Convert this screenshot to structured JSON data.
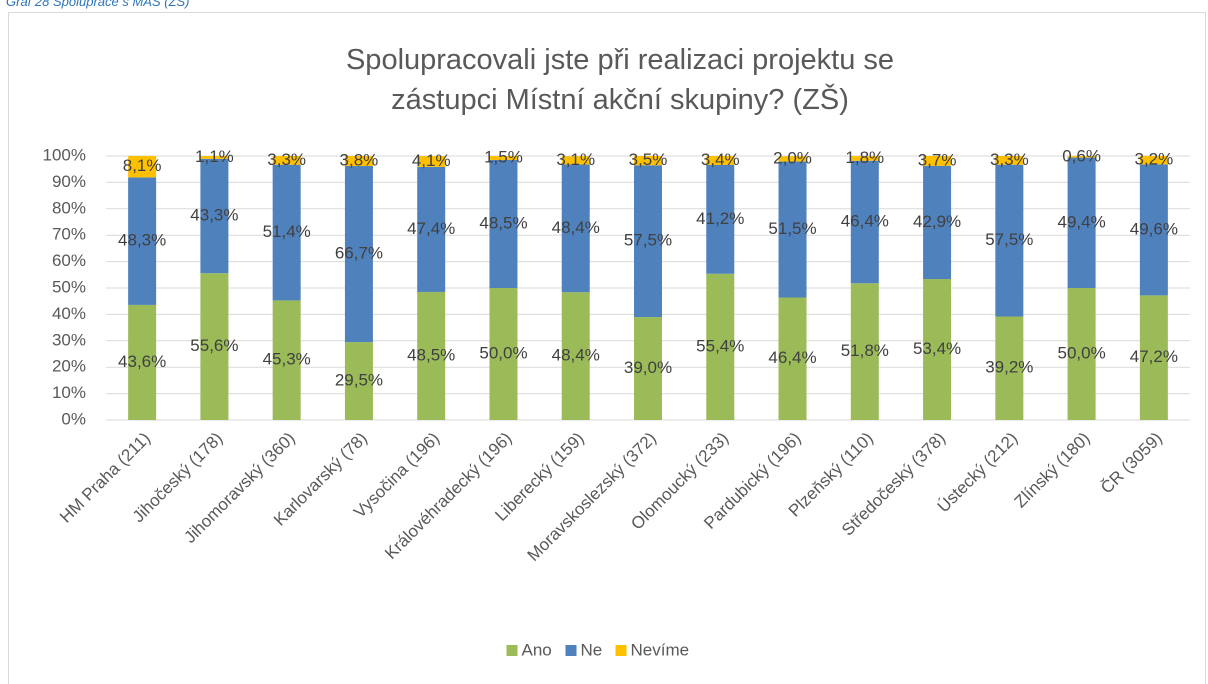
{
  "caption": "Graf 28 Spolupráce s MAS (ZŠ)",
  "chart_data": {
    "type": "stacked_bar",
    "title": "Spolupracovali jste při realizaci projektu se zástupci Místní akční skupiny? (ZŠ)",
    "categories": [
      "HM Praha (211)",
      "Jihočeský (178)",
      "Jihomoravský (360)",
      "Karlovarský (78)",
      "Vysočina (196)",
      "Královéhradecký (196)",
      "Liberecký (159)",
      "Moravskoslezský (372)",
      "Olomoucký (233)",
      "Pardubický (196)",
      "Plzeňský (110)",
      "Středočeský (378)",
      "Ústecký (212)",
      "Zlínský (180)",
      "ČR (3059)"
    ],
    "series": [
      {
        "name": "Ano",
        "color": "#9bbb59",
        "values": [
          43.6,
          55.6,
          45.3,
          29.5,
          48.5,
          50.0,
          48.4,
          39.0,
          55.4,
          46.4,
          51.8,
          53.4,
          39.2,
          50.0,
          47.2
        ],
        "value_labels": [
          "43,6%",
          "55,6%",
          "45,3%",
          "29,5%",
          "48,5%",
          "50,0%",
          "48,4%",
          "39,0%",
          "55,4%",
          "46,4%",
          "51,8%",
          "53,4%",
          "39,2%",
          "50,0%",
          "47,2%"
        ]
      },
      {
        "name": "Ne",
        "color": "#4f81bd",
        "values": [
          48.3,
          43.3,
          51.4,
          66.7,
          47.4,
          48.5,
          48.4,
          57.5,
          41.2,
          51.5,
          46.4,
          42.9,
          57.5,
          49.4,
          49.6
        ],
        "value_labels": [
          "48,3%",
          "43,3%",
          "51,4%",
          "66,7%",
          "47,4%",
          "48,5%",
          "48,4%",
          "57,5%",
          "41,2%",
          "51,5%",
          "46,4%",
          "42,9%",
          "57,5%",
          "49,4%",
          "49,6%"
        ]
      },
      {
        "name": "Nevíme",
        "color": "#ffc000",
        "values": [
          8.1,
          1.1,
          3.3,
          3.8,
          4.1,
          1.5,
          3.1,
          3.5,
          3.4,
          2.0,
          1.8,
          3.7,
          3.3,
          0.6,
          3.2
        ],
        "value_labels": [
          "8,1%",
          "1,1%",
          "3,3%",
          "3,8%",
          "4,1%",
          "1,5%",
          "3,1%",
          "3,5%",
          "3,4%",
          "2,0%",
          "1,8%",
          "3,7%",
          "3,3%",
          "0,6%",
          "3,2%"
        ]
      }
    ],
    "ylim": [
      0,
      100
    ],
    "yticks": [
      {
        "value": 0,
        "label": "0%"
      },
      {
        "value": 10,
        "label": "10%"
      },
      {
        "value": 20,
        "label": "20%"
      },
      {
        "value": 30,
        "label": "30%"
      },
      {
        "value": 40,
        "label": "40%"
      },
      {
        "value": 50,
        "label": "50%"
      },
      {
        "value": 60,
        "label": "60%"
      },
      {
        "value": 70,
        "label": "70%"
      },
      {
        "value": 80,
        "label": "80%"
      },
      {
        "value": 90,
        "label": "90%"
      },
      {
        "value": 100,
        "label": "100%"
      }
    ],
    "grid": true,
    "legend": "bottom"
  }
}
